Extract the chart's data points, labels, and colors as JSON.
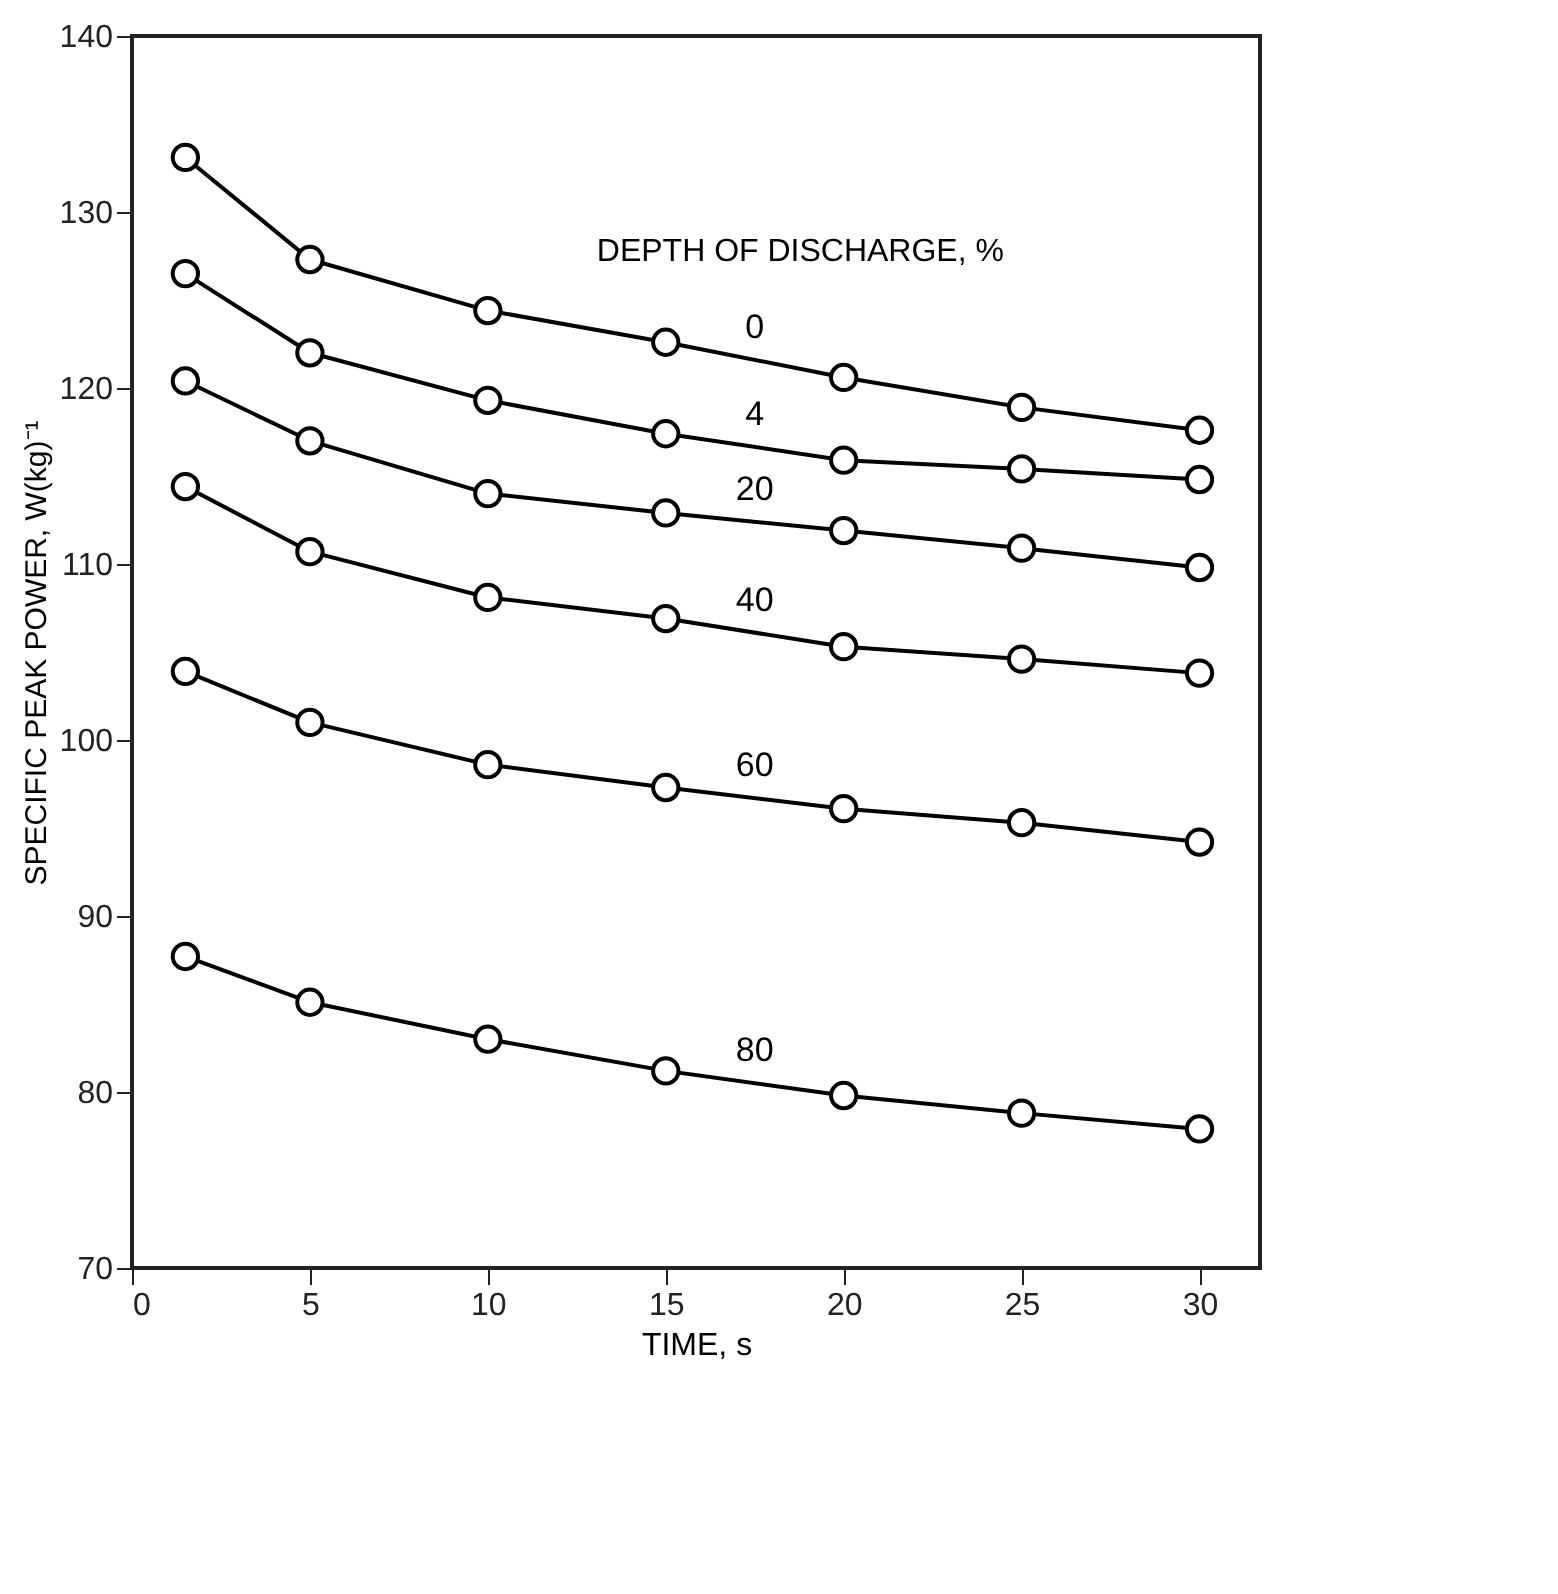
{
  "chart_data": {
    "type": "line",
    "xlabel": "TIME, s",
    "ylabel": "SPECIFIC PEAK POWER, W(kg)⁻¹",
    "legend_title": "DEPTH OF DISCHARGE, %",
    "x": [
      1.5,
      5,
      10,
      15,
      20,
      25,
      30
    ],
    "xlim": [
      0,
      31.7
    ],
    "xticks": [
      0,
      5,
      10,
      15,
      20,
      25,
      30
    ],
    "ylim": [
      70,
      140
    ],
    "yticks": [
      70,
      80,
      90,
      100,
      110,
      120,
      130,
      140
    ],
    "grid": false,
    "marker": "circle",
    "line_style": "solid",
    "legend": false,
    "series": [
      {
        "name": "0",
        "color": "#000000",
        "values": [
          133.1,
          127.3,
          124.4,
          122.6,
          120.6,
          118.9,
          117.6
        ]
      },
      {
        "name": "4",
        "color": "#000000",
        "values": [
          126.5,
          122.0,
          119.3,
          117.4,
          115.9,
          115.4,
          114.8
        ]
      },
      {
        "name": "20",
        "color": "#000000",
        "values": [
          120.4,
          117.0,
          114.0,
          112.9,
          111.9,
          110.9,
          109.8
        ]
      },
      {
        "name": "40",
        "color": "#000000",
        "values": [
          114.4,
          110.7,
          108.1,
          106.9,
          105.3,
          104.6,
          103.8
        ]
      },
      {
        "name": "60",
        "color": "#000000",
        "values": [
          103.9,
          101.0,
          98.6,
          97.3,
          96.1,
          95.3,
          94.2
        ]
      },
      {
        "name": "80",
        "color": "#000000",
        "values": [
          87.7,
          85.1,
          83.0,
          81.2,
          79.8,
          78.8,
          77.9
        ]
      }
    ]
  }
}
